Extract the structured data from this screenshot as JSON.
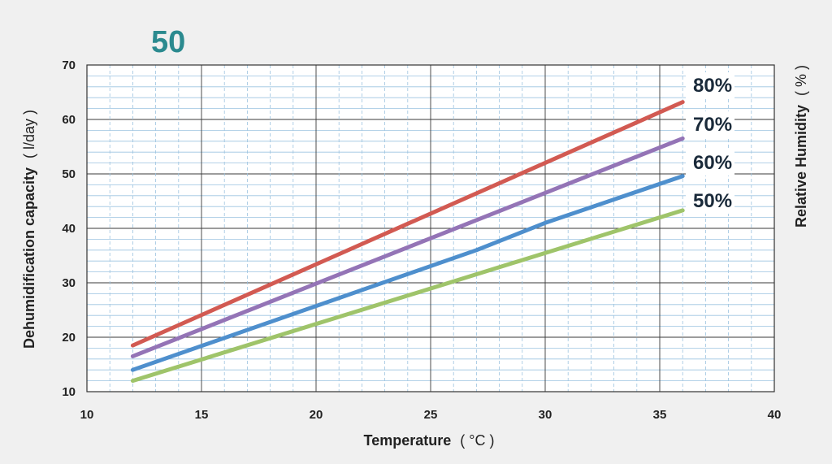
{
  "chart_data": {
    "type": "line",
    "title": "50",
    "title_color": "#2b8a8f",
    "xlabel": "Temperature",
    "xlabel_unit": "( °C )",
    "ylabel": "Dehumidification capacity",
    "ylabel_unit": "( l/day )",
    "y2label": "Relative Humidity",
    "y2label_unit": "( % )",
    "xlim": [
      10,
      40
    ],
    "ylim": [
      10,
      70
    ],
    "x_ticks": [
      "10",
      "15",
      "20",
      "25",
      "30",
      "35",
      "40"
    ],
    "y_ticks": [
      "10",
      "20",
      "30",
      "40",
      "50",
      "60",
      "70"
    ],
    "grid": true,
    "legend_position": "right",
    "series": [
      {
        "name": "80%",
        "color": "#d25a52",
        "x": [
          12,
          36
        ],
        "values": [
          18.5,
          63.2
        ]
      },
      {
        "name": "70%",
        "color": "#9474b6",
        "x": [
          12,
          36
        ],
        "values": [
          16.5,
          56.5
        ]
      },
      {
        "name": "60%",
        "color": "#4e8fcd",
        "x": [
          12,
          27,
          30,
          36
        ],
        "values": [
          14.0,
          36.0,
          41.0,
          49.6
        ]
      },
      {
        "name": "50%",
        "color": "#9fc46a",
        "x": [
          12,
          36
        ],
        "values": [
          12.0,
          43.3
        ]
      }
    ]
  }
}
